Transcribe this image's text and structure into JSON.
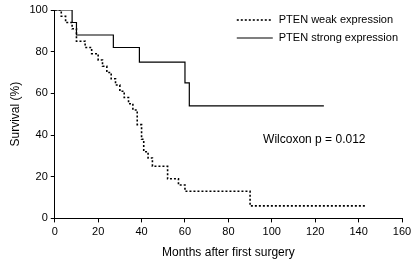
{
  "chart_data": {
    "type": "line",
    "x_label": "Months after first surgery",
    "y_label": "Survival (%)",
    "annotation": "Wilcoxon p = 0.012",
    "series": [
      {
        "name": "PTEN weak expression",
        "color": "#000000",
        "line_style": "dotted",
        "x": [
          0,
          3,
          5,
          8,
          10,
          14,
          17,
          20,
          22,
          24,
          26,
          28,
          30,
          32,
          34,
          36,
          38,
          40,
          41,
          43,
          45,
          52,
          57,
          60,
          90,
          143
        ],
        "values": [
          100,
          97,
          94,
          91,
          85,
          82,
          79,
          76,
          73,
          70,
          67,
          64,
          61,
          58,
          55,
          52,
          45,
          38,
          32,
          29,
          25,
          19,
          16,
          13,
          6,
          6
        ]
      },
      {
        "name": "PTEN strong expression",
        "color": "#000000",
        "line_style": "solid",
        "x": [
          0,
          8,
          10,
          27,
          39,
          60,
          62,
          124
        ],
        "values": [
          100,
          94,
          88,
          82,
          75,
          65,
          54,
          54
        ]
      }
    ],
    "xlim": [
      0,
      160
    ],
    "xticks": [
      0,
      20,
      40,
      60,
      80,
      100,
      120,
      140,
      160
    ],
    "ylim": [
      0,
      100
    ],
    "yticks": [
      0,
      20,
      40,
      60,
      80,
      100
    ],
    "grid": false,
    "legend": "upper right",
    "stepped": true
  }
}
